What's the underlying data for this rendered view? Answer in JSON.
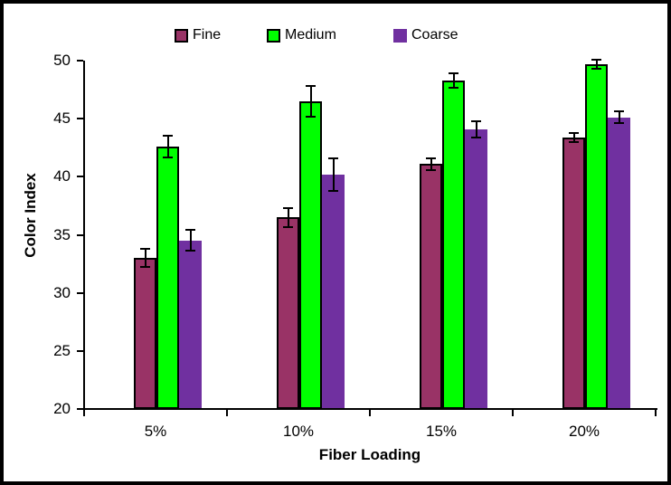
{
  "figure": {
    "background": "#ffffff",
    "frame_color": "#000000",
    "axis_color": "#000000",
    "text_color": "#000000"
  },
  "chart_data": {
    "type": "bar",
    "title": "",
    "xlabel": "Fiber Loading",
    "ylabel": "Color Index",
    "categories": [
      "5%",
      "10%",
      "15%",
      "20%"
    ],
    "series": [
      {
        "name": "Fine",
        "color": "#993366",
        "border_color": "#000000",
        "values": [
          33.0,
          36.5,
          41.1,
          43.4
        ],
        "errors": [
          0.8,
          0.8,
          0.5,
          0.4
        ]
      },
      {
        "name": "Medium",
        "color": "#00FF00",
        "border_color": "#000000",
        "values": [
          42.6,
          46.5,
          48.3,
          49.7
        ],
        "errors": [
          0.9,
          1.3,
          0.6,
          0.4
        ]
      },
      {
        "name": "Coarse",
        "color": "#7030A0",
        "border_color": null,
        "values": [
          34.5,
          40.2,
          44.1,
          45.1
        ],
        "errors": [
          0.9,
          1.4,
          0.7,
          0.5
        ]
      }
    ],
    "ylim": [
      20,
      50
    ],
    "yticks": [
      20,
      25,
      30,
      35,
      40,
      45,
      50
    ],
    "error_bars": true,
    "grid": false,
    "legend_position": "top"
  }
}
